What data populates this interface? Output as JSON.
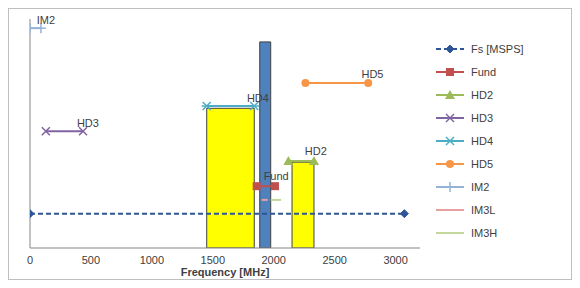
{
  "chart_data": {
    "type": "line",
    "x_label": "Frequency [MHz]",
    "xlim": [
      0,
      3200
    ],
    "xticks": [
      0,
      500,
      1000,
      1500,
      2000,
      2500,
      3000
    ],
    "ylim": [
      0,
      10
    ],
    "yticks": [
      0,
      1,
      2,
      3,
      4,
      5,
      6,
      7,
      8,
      9,
      10
    ],
    "grid": true,
    "tick_labels": "x",
    "legend": "right",
    "series": [
      {
        "name": "Fs [MSPS]",
        "color": "#2e5597",
        "marker": "diamond",
        "line_style": "dashed",
        "x": [
          0,
          3072
        ],
        "values": [
          1.5,
          1.5
        ]
      },
      {
        "name": "Fund",
        "color": "#c0504d",
        "marker": "square",
        "line_style": "solid",
        "x": [
          1860,
          2010
        ],
        "values": [
          2.7,
          2.7
        ]
      },
      {
        "name": "HD2",
        "color": "#9bbb59",
        "marker": "triangle",
        "line_style": "solid",
        "x": [
          2120,
          2330
        ],
        "values": [
          3.8,
          3.8
        ]
      },
      {
        "name": "HD3",
        "color": "#8064a2",
        "marker": "x",
        "line_style": "solid",
        "x": [
          130,
          435
        ],
        "values": [
          5.1,
          5.1
        ]
      },
      {
        "name": "HD4",
        "color": "#4bacc6",
        "marker": "star",
        "line_style": "solid",
        "x": [
          1450,
          1840
        ],
        "values": [
          6.2,
          6.2
        ]
      },
      {
        "name": "HD5",
        "color": "#f79646",
        "marker": "circle",
        "line_style": "solid",
        "x": [
          2260,
          2775
        ],
        "values": [
          7.2,
          7.2
        ]
      },
      {
        "name": "IM2",
        "color": "#95b3d7",
        "marker": "plus",
        "line_style": "solid",
        "x": [
          0,
          90
        ],
        "values": [
          9.6,
          9.6
        ]
      },
      {
        "name": "IM3L",
        "color": "#e6a0a0",
        "marker": "none",
        "line_style": "solid",
        "x": [
          1900,
          1950
        ],
        "values": [
          2.1,
          2.1
        ]
      },
      {
        "name": "IM3H",
        "color": "#c3d69b",
        "marker": "none",
        "line_style": "solid",
        "x": [
          1975,
          2060
        ],
        "values": [
          2.1,
          2.1
        ]
      }
    ],
    "bands": [
      {
        "x": [
          1450,
          1840
        ],
        "y": [
          0,
          6.1
        ],
        "color": "#ffff00"
      },
      {
        "x": [
          2150,
          2330
        ],
        "y": [
          0,
          3.75
        ],
        "color": "#ffff00"
      },
      {
        "x": [
          1885,
          1975
        ],
        "y": [
          0,
          9.0
        ],
        "color": "#4f81bd"
      }
    ],
    "annotations": [
      {
        "text": "IM2",
        "x": 130,
        "y": 9.95
      },
      {
        "text": "HD3",
        "x": 475,
        "y": 5.45
      },
      {
        "text": "HD4",
        "x": 1870,
        "y": 6.55
      },
      {
        "text": "HD5",
        "x": 2810,
        "y": 7.6
      },
      {
        "text": "HD2",
        "x": 2345,
        "y": 4.25
      },
      {
        "text": "Fund",
        "x": 2020,
        "y": 3.15
      }
    ]
  }
}
